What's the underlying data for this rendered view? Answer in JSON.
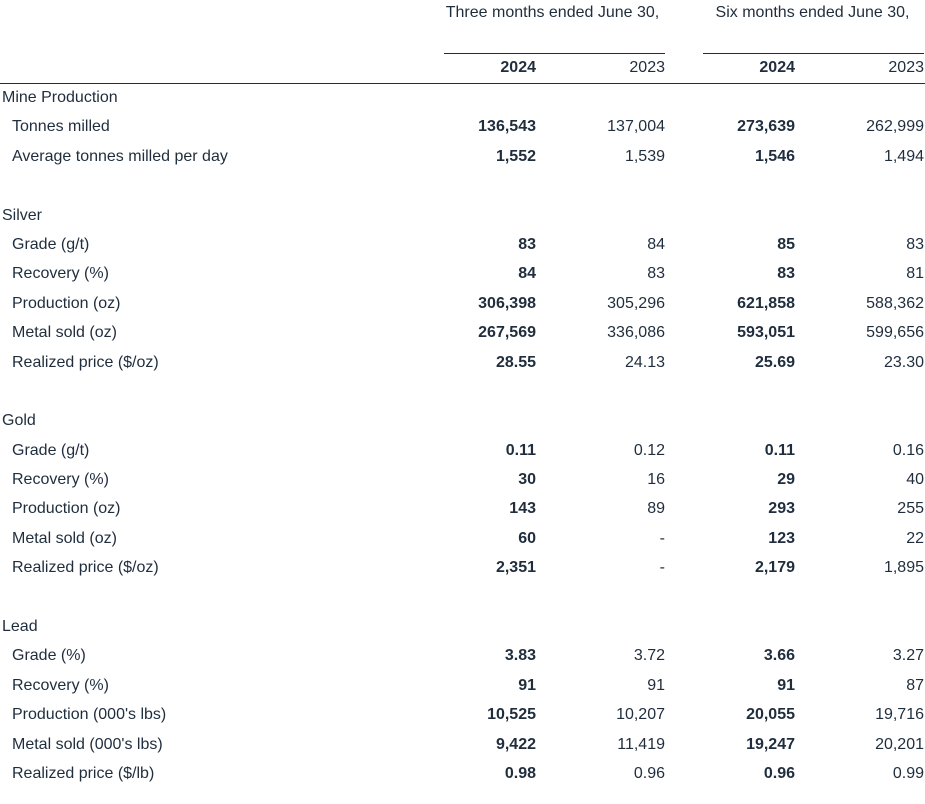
{
  "header": {
    "group1": "Three months ended June 30,",
    "group2": "Six months ended June 30,",
    "years": [
      "2024",
      "2023",
      "2024",
      "2023"
    ]
  },
  "rows": [
    {
      "type": "section",
      "label": "Mine Production"
    },
    {
      "type": "data",
      "label": "Tonnes milled",
      "values": [
        "136,543",
        "137,004",
        "273,639",
        "262,999"
      ]
    },
    {
      "type": "data",
      "label": "Average tonnes milled per day",
      "values": [
        "1,552",
        "1,539",
        "1,546",
        "1,494"
      ]
    },
    {
      "type": "spacer"
    },
    {
      "type": "section",
      "label": "Silver"
    },
    {
      "type": "data",
      "label": "Grade (g/t)",
      "values": [
        "83",
        "84",
        "85",
        "83"
      ]
    },
    {
      "type": "data",
      "label": "Recovery (%)",
      "values": [
        "84",
        "83",
        "83",
        "81"
      ]
    },
    {
      "type": "data",
      "label": "Production (oz)",
      "values": [
        "306,398",
        "305,296",
        "621,858",
        "588,362"
      ]
    },
    {
      "type": "data",
      "label": "Metal sold (oz)",
      "values": [
        "267,569",
        "336,086",
        "593,051",
        "599,656"
      ]
    },
    {
      "type": "data",
      "label": "Realized price ($/oz)",
      "values": [
        "28.55",
        "24.13",
        "25.69",
        "23.30"
      ]
    },
    {
      "type": "spacer"
    },
    {
      "type": "section",
      "label": "Gold"
    },
    {
      "type": "data",
      "label": "Grade (g/t)",
      "values": [
        "0.11",
        "0.12",
        "0.11",
        "0.16"
      ]
    },
    {
      "type": "data",
      "label": "Recovery (%)",
      "values": [
        "30",
        "16",
        "29",
        "40"
      ]
    },
    {
      "type": "data",
      "label": "Production (oz)",
      "values": [
        "143",
        "89",
        "293",
        "255"
      ]
    },
    {
      "type": "data",
      "label": "Metal sold (oz)",
      "values": [
        "60",
        "-",
        "123",
        "22"
      ]
    },
    {
      "type": "data",
      "label": "Realized price ($/oz)",
      "values": [
        "2,351",
        "-",
        "2,179",
        "1,895"
      ]
    },
    {
      "type": "spacer"
    },
    {
      "type": "section",
      "label": "Lead"
    },
    {
      "type": "data",
      "label": "Grade (%)",
      "values": [
        "3.83",
        "3.72",
        "3.66",
        "3.27"
      ]
    },
    {
      "type": "data",
      "label": "Recovery (%)",
      "values": [
        "91",
        "91",
        "91",
        "87"
      ]
    },
    {
      "type": "data",
      "label": "Production (000's lbs)",
      "values": [
        "10,525",
        "10,207",
        "20,055",
        "19,716"
      ]
    },
    {
      "type": "data",
      "label": "Metal sold (000's lbs)",
      "values": [
        "9,422",
        "11,419",
        "19,247",
        "20,201"
      ]
    },
    {
      "type": "data",
      "label": "Realized price ($/lb)",
      "values": [
        "0.98",
        "0.96",
        "0.96",
        "0.99"
      ]
    }
  ]
}
